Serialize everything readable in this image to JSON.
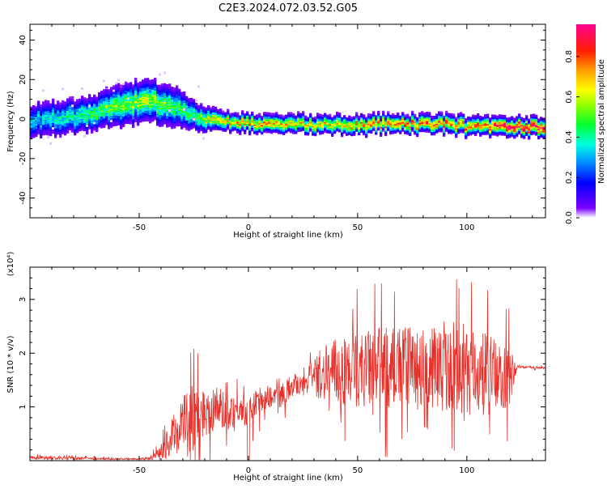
{
  "title": "C2E3.2024.072.03.52.G05",
  "colorbar": {
    "label": "Normalized spectral amplitude",
    "ticks": [
      "0.0",
      "0.2",
      "0.4",
      "0.6",
      "0.8"
    ],
    "tick_values": [
      0.0,
      0.2,
      0.4,
      0.6,
      0.8
    ],
    "range": [
      0,
      0.96
    ]
  },
  "chart_data": [
    {
      "type": "heatmap",
      "xlabel": "Height of straight line (km)",
      "ylabel": "Frequency (Hz)",
      "xlim": [
        -100,
        136
      ],
      "ylim": [
        -50,
        48
      ],
      "xticks": [
        -50,
        0,
        50,
        100
      ],
      "xtick_labels": [
        "-50",
        "0",
        "50",
        "100"
      ],
      "yticks": [
        -40,
        -20,
        0,
        20,
        40
      ],
      "ytick_labels": [
        "-40",
        "-20",
        "0",
        "20",
        "40"
      ],
      "ridge": {
        "x": [
          -100,
          -90,
          -80,
          -70,
          -60,
          -50,
          -45,
          -40,
          -35,
          -30,
          -25,
          -20,
          -10,
          0,
          10,
          20,
          30,
          40,
          50,
          60,
          70,
          80,
          90,
          100,
          110,
          120,
          136
        ],
        "freq": [
          0,
          1,
          2,
          4,
          7,
          9,
          10,
          8,
          7,
          5,
          3,
          0,
          -1,
          -1,
          -2,
          -2,
          -2,
          -2,
          -2.5,
          -2,
          -2,
          -2,
          -2,
          -3,
          -3,
          -3.5,
          -3
        ],
        "width": [
          6,
          6,
          6,
          6,
          7,
          7,
          7,
          7,
          7,
          6,
          5,
          4,
          3,
          3,
          3,
          3,
          3,
          3,
          3,
          3,
          3,
          3,
          3,
          3,
          3,
          3,
          3
        ],
        "amplitude": [
          0.3,
          0.35,
          0.4,
          0.45,
          0.5,
          0.55,
          0.55,
          0.5,
          0.45,
          0.45,
          0.4,
          0.6,
          0.65,
          0.7,
          0.7,
          0.65,
          0.65,
          0.65,
          0.7,
          0.7,
          0.75,
          0.75,
          0.75,
          0.7,
          0.8,
          0.9,
          0.95
        ]
      }
    },
    {
      "type": "line",
      "xlabel": "Height of straight line (km)",
      "ylabel": "SNR (10 * v/v)",
      "y_multiplier": "(x10⁴)",
      "xlim": [
        -100,
        136
      ],
      "ylim": [
        0,
        3.6
      ],
      "xticks": [
        -50,
        0,
        50,
        100
      ],
      "xtick_labels": [
        "-50",
        "0",
        "50",
        "100"
      ],
      "yticks": [
        1,
        2,
        3
      ],
      "ytick_labels": [
        "1",
        "2",
        "3"
      ],
      "series": [
        {
          "color": "#e8302a",
          "envelope": {
            "x": [
              -100,
              -85,
              -70,
              -60,
              -50,
              -45,
              -40,
              -35,
              -30,
              -25,
              -20,
              -15,
              -10,
              -5,
              0,
              5,
              10,
              15,
              20,
              25,
              30,
              35,
              40,
              50,
              60,
              70,
              80,
              90,
              100,
              110,
              120,
              123,
              136
            ],
            "base": [
              0.06,
              0.05,
              0.04,
              0.03,
              0.03,
              0.05,
              0.12,
              0.45,
              0.7,
              0.8,
              0.9,
              1.0,
              0.9,
              1.0,
              0.9,
              1.1,
              1.2,
              1.2,
              1.4,
              1.5,
              1.55,
              1.6,
              1.65,
              1.7,
              1.7,
              1.75,
              1.7,
              1.7,
              1.65,
              1.6,
              1.55,
              1.75,
              1.72
            ],
            "spread": [
              0.05,
              0.04,
              0.03,
              0.02,
              0.02,
              0.04,
              0.2,
              0.5,
              0.8,
              0.9,
              0.7,
              0.6,
              0.5,
              0.4,
              0.4,
              0.4,
              0.3,
              0.3,
              0.3,
              0.35,
              0.5,
              0.7,
              0.9,
              1.0,
              1.1,
              1.1,
              1.1,
              1.1,
              1.1,
              1.1,
              0.8,
              0.03,
              0.03
            ]
          }
        }
      ]
    }
  ]
}
